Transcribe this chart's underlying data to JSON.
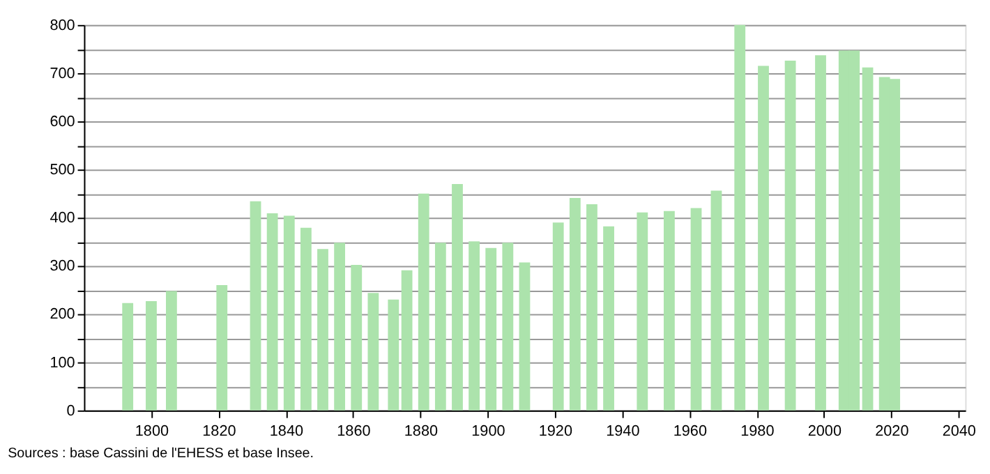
{
  "chart_data": {
    "type": "bar",
    "color": "#ace3ac",
    "x": [
      1793,
      1800,
      1806,
      1821,
      1831,
      1836,
      1841,
      1846,
      1851,
      1856,
      1861,
      1866,
      1872,
      1876,
      1881,
      1886,
      1891,
      1896,
      1901,
      1906,
      1911,
      1921,
      1926,
      1931,
      1936,
      1946,
      1954,
      1962,
      1968,
      1975,
      1982,
      1990,
      1999,
      2006,
      2009,
      2013,
      2018,
      2021
    ],
    "values": [
      223,
      227,
      248,
      260,
      434,
      409,
      404,
      379,
      335,
      348,
      302,
      244,
      230,
      291,
      450,
      348,
      470,
      351,
      337,
      348,
      307,
      390,
      441,
      428,
      382,
      411,
      414,
      420,
      456,
      800,
      715,
      726,
      737,
      747,
      747,
      712,
      692,
      688
    ],
    "xlim": [
      1780,
      2042
    ],
    "xticks": [
      1800,
      1820,
      1840,
      1860,
      1880,
      1900,
      1920,
      1940,
      1960,
      1980,
      2000,
      2020,
      2040
    ],
    "ylim": [
      0,
      800
    ],
    "yticks": [
      0,
      {
        "value": 50,
        "label": null
      },
      100,
      {
        "value": 150,
        "label": null
      },
      200,
      {
        "value": 250,
        "label": null
      },
      300,
      {
        "value": 350,
        "label": null
      },
      400,
      {
        "value": 450,
        "label": null
      },
      500,
      {
        "value": 550,
        "label": null
      },
      600,
      {
        "value": 650,
        "label": null
      },
      700,
      {
        "value": 750,
        "label": null
      },
      800
    ],
    "grid": "y",
    "annotations": [
      "Sources : base Cassini de l'EHESS et base Insee."
    ]
  }
}
